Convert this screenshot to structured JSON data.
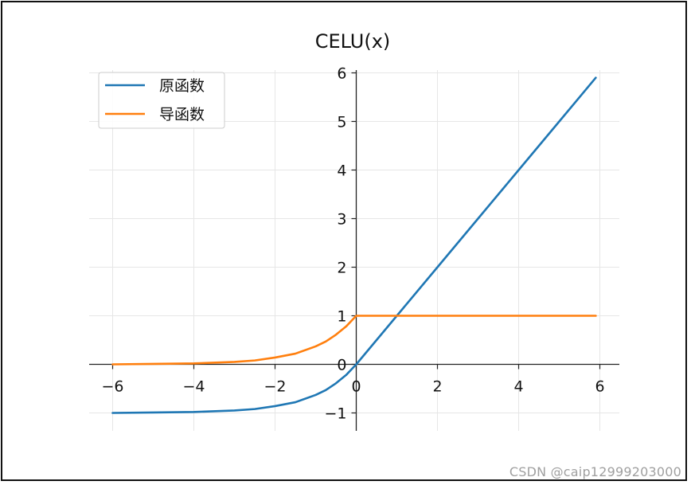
{
  "chart_data": {
    "type": "line",
    "title": "CELU(x)",
    "xlabel": "",
    "ylabel": "",
    "xlim": [
      -6.0,
      6.0
    ],
    "ylim": [
      -1.0,
      6.0
    ],
    "x_ticks": [
      -6,
      -4,
      -2,
      0,
      2,
      4,
      6
    ],
    "y_ticks": [
      -1,
      0,
      1,
      2,
      3,
      4,
      5,
      6
    ],
    "x_tick_labels": [
      "−6",
      "−4",
      "−2",
      "0",
      "2",
      "4",
      "6"
    ],
    "y_tick_labels": [
      "−1",
      "0",
      "1",
      "2",
      "3",
      "4",
      "5",
      "6"
    ],
    "grid": true,
    "legend_position": "upper-left",
    "x": [
      -6.0,
      -5.0,
      -4.0,
      -3.0,
      -2.5,
      -2.0,
      -1.5,
      -1.0,
      -0.75,
      -0.5,
      -0.25,
      0.0,
      0.5,
      1.0,
      2.0,
      3.0,
      4.0,
      5.0,
      5.9
    ],
    "series": [
      {
        "name": "原函数",
        "color": "#1f77b4",
        "values": [
          -1.0,
          -0.99,
          -0.98,
          -0.95,
          -0.92,
          -0.86,
          -0.78,
          -0.63,
          -0.53,
          -0.39,
          -0.22,
          0.0,
          0.5,
          1.0,
          2.0,
          3.0,
          4.0,
          5.0,
          5.9
        ]
      },
      {
        "name": "导函数",
        "color": "#ff7f0e",
        "values": [
          0.0,
          0.01,
          0.02,
          0.05,
          0.08,
          0.14,
          0.22,
          0.37,
          0.47,
          0.61,
          0.78,
          1.0,
          1.0,
          1.0,
          1.0,
          1.0,
          1.0,
          1.0,
          1.0
        ]
      }
    ]
  },
  "watermark": "CSDN @caip12999203000"
}
